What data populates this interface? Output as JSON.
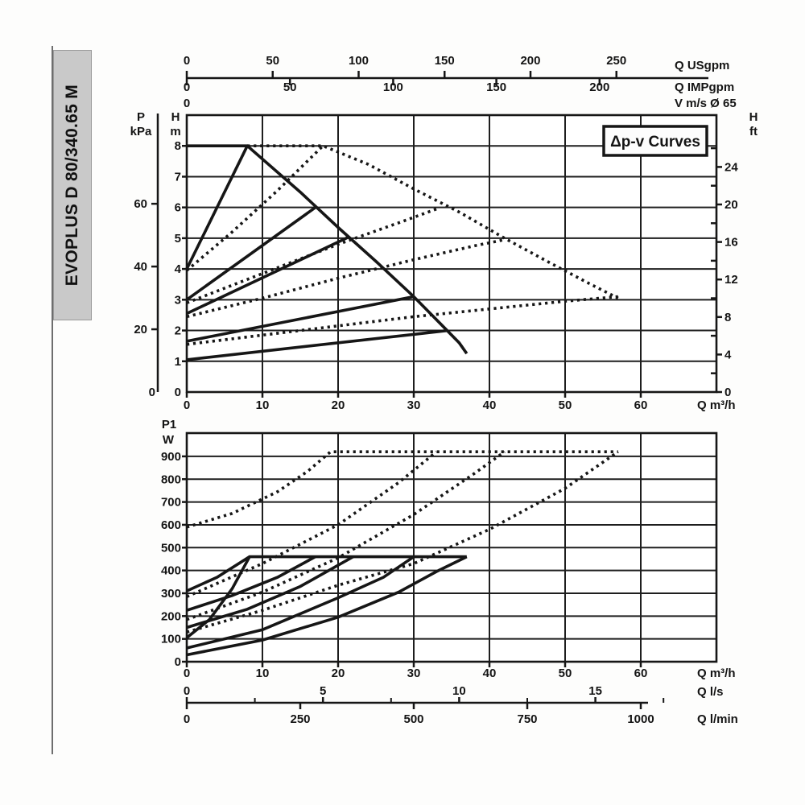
{
  "sidebar": {
    "model": "EVOPLUS D 80/340.65 M"
  },
  "top_chart": {
    "badge": "Δp-v Curves",
    "p_axis": {
      "name": "P",
      "unit": "kPa",
      "ticks": [
        60,
        40,
        20
      ],
      "zero": "0"
    },
    "h_axis": {
      "name": "H",
      "unit": "m",
      "ticks": [
        8,
        7,
        6,
        5,
        4,
        3,
        2,
        1
      ],
      "zero": "0"
    },
    "ft_axis": {
      "name": "H",
      "unit": "ft",
      "ticks": [
        24,
        20,
        16,
        12,
        8,
        4,
        0
      ],
      "minor": [
        26,
        22,
        18,
        14,
        10,
        6,
        2
      ]
    },
    "usgpm_axis": {
      "name": "Q USgpm",
      "ticks": [
        0,
        50,
        100,
        150,
        200,
        250
      ]
    },
    "impgpm_axis": {
      "name": "Q IMPgpm",
      "ticks": [
        0,
        50,
        100,
        150,
        200
      ]
    },
    "v_axis": {
      "name": "V m/s Ø 65",
      "ticks": [
        0
      ]
    },
    "q_axis": {
      "name": "Q m³/h",
      "ticks": [
        0,
        10,
        20,
        30,
        40,
        50,
        60
      ]
    }
  },
  "bottom_chart": {
    "p1_axis": {
      "name": "P1",
      "unit": "W",
      "ticks": [
        900,
        800,
        700,
        600,
        500,
        400,
        300,
        200,
        100,
        0
      ]
    },
    "q_axis": {
      "name": "Q m³/h",
      "ticks": [
        0,
        10,
        20,
        30,
        40,
        50,
        60
      ]
    },
    "ls_axis": {
      "name": "Q l/s",
      "ticks": [
        0,
        5,
        10,
        15
      ],
      "minor": [
        2.5,
        7.5,
        12.5,
        17.5
      ]
    },
    "lmin_axis": {
      "name": "Q l/min",
      "ticks": [
        0,
        250,
        500,
        750,
        1000
      ]
    }
  },
  "chart_data": [
    {
      "type": "line",
      "title": "Δp-v Curves",
      "xlabel": "Q m³/h",
      "ylabel": "H m",
      "xlim": [
        0,
        70
      ],
      "ylim": [
        0,
        9
      ],
      "x_ticks": [
        0,
        10,
        20,
        30,
        40,
        50,
        60
      ],
      "y_ticks": [
        0,
        1,
        2,
        3,
        4,
        5,
        6,
        7,
        8
      ],
      "grid": true,
      "series": [
        {
          "name": "max-speed-curve-single",
          "style": "solid",
          "points": [
            [
              0,
              8
            ],
            [
              8,
              8
            ],
            [
              15,
              6.5
            ],
            [
              20,
              5.35
            ],
            [
              25,
              4.25
            ],
            [
              30,
              3.1
            ],
            [
              34,
              2.1
            ],
            [
              36,
              1.6
            ],
            [
              37,
              1.25
            ]
          ]
        },
        {
          "name": "setpoint-8m-single",
          "style": "solid",
          "points": [
            [
              0,
              4
            ],
            [
              8,
              8
            ]
          ]
        },
        {
          "name": "setpoint-6m-single",
          "style": "solid",
          "points": [
            [
              0,
              3
            ],
            [
              17,
              6
            ]
          ]
        },
        {
          "name": "setpoint-5m-single",
          "style": "solid",
          "points": [
            [
              0,
              2.55
            ],
            [
              21.5,
              5.05
            ]
          ]
        },
        {
          "name": "setpoint-3m-single",
          "style": "solid",
          "points": [
            [
              0,
              1.65
            ],
            [
              30,
              3.1
            ]
          ]
        },
        {
          "name": "setpoint-2m-single",
          "style": "solid",
          "points": [
            [
              0,
              1.05
            ],
            [
              34.5,
              2.0
            ]
          ]
        },
        {
          "name": "max-speed-curve-parallel",
          "style": "dashed",
          "points": [
            [
              8,
              8
            ],
            [
              18,
              8
            ],
            [
              24,
              7.4
            ],
            [
              30,
              6.6
            ],
            [
              36,
              5.85
            ],
            [
              42,
              5.0
            ],
            [
              48,
              4.2
            ],
            [
              53,
              3.55
            ],
            [
              57,
              3.05
            ]
          ]
        },
        {
          "name": "setpoint-8m-parallel",
          "style": "dashed",
          "points": [
            [
              0,
              3.95
            ],
            [
              6,
              5.2
            ],
            [
              12,
              6.55
            ],
            [
              18,
              8
            ]
          ]
        },
        {
          "name": "setpoint-6m-parallel",
          "style": "dashed",
          "points": [
            [
              0,
              2.9
            ],
            [
              10,
              3.85
            ],
            [
              20,
              4.8
            ],
            [
              28,
              5.5
            ],
            [
              33,
              5.95
            ]
          ]
        },
        {
          "name": "setpoint-5m-parallel",
          "style": "dashed",
          "points": [
            [
              0,
              2.45
            ],
            [
              10,
              3.05
            ],
            [
              20,
              3.7
            ],
            [
              30,
              4.3
            ],
            [
              38,
              4.75
            ],
            [
              42,
              4.95
            ]
          ]
        },
        {
          "name": "setpoint-3m-parallel",
          "style": "dashed",
          "points": [
            [
              0,
              1.55
            ],
            [
              10,
              1.85
            ],
            [
              20,
              2.15
            ],
            [
              30,
              2.45
            ],
            [
              40,
              2.7
            ],
            [
              50,
              2.95
            ],
            [
              57,
              3.1
            ]
          ]
        }
      ]
    },
    {
      "type": "line",
      "title": "Power input",
      "xlabel": "Q m³/h",
      "ylabel": "P1 W",
      "xlim": [
        0,
        70
      ],
      "ylim": [
        0,
        1002
      ],
      "x_ticks": [
        0,
        10,
        20,
        30,
        40,
        50,
        60
      ],
      "y_ticks": [
        0,
        100,
        200,
        300,
        400,
        500,
        600,
        700,
        800,
        900
      ],
      "grid": true,
      "series": [
        {
          "name": "power-max-single",
          "style": "solid",
          "points": [
            [
              0,
              310
            ],
            [
              4,
              370
            ],
            [
              8.3,
              460
            ],
            [
              37,
              460
            ]
          ]
        },
        {
          "name": "power-setpoint-8m-single",
          "style": "solid",
          "points": [
            [
              0,
              105
            ],
            [
              3,
              185
            ],
            [
              6,
              320
            ],
            [
              8.3,
              460
            ]
          ]
        },
        {
          "name": "power-setpoint-6m-single",
          "style": "solid",
          "points": [
            [
              0,
              225
            ],
            [
              6,
              290
            ],
            [
              12,
              370
            ],
            [
              17,
              460
            ]
          ]
        },
        {
          "name": "power-setpoint-5m-single",
          "style": "solid",
          "points": [
            [
              0,
              150
            ],
            [
              8,
              230
            ],
            [
              15,
              330
            ],
            [
              22,
              460
            ]
          ]
        },
        {
          "name": "power-setpoint-3m-single",
          "style": "solid",
          "points": [
            [
              0,
              60
            ],
            [
              10,
              140
            ],
            [
              20,
              280
            ],
            [
              26,
              370
            ],
            [
              30,
              460
            ]
          ]
        },
        {
          "name": "power-setpoint-2m-single",
          "style": "solid",
          "points": [
            [
              0,
              30
            ],
            [
              10,
              95
            ],
            [
              20,
              195
            ],
            [
              28,
              305
            ],
            [
              33,
              395
            ],
            [
              37,
              460
            ]
          ]
        },
        {
          "name": "power-max-parallel",
          "style": "dashed",
          "points": [
            [
              0,
              590
            ],
            [
              6,
              650
            ],
            [
              12,
              745
            ],
            [
              16,
              835
            ],
            [
              19,
              920
            ],
            [
              57,
              920
            ]
          ]
        },
        {
          "name": "power-setpoint-6m-parallel",
          "style": "dashed",
          "points": [
            [
              0,
              285
            ],
            [
              10,
              430
            ],
            [
              20,
              600
            ],
            [
              28,
              785
            ],
            [
              33,
              920
            ]
          ]
        },
        {
          "name": "power-setpoint-5m-parallel",
          "style": "dashed",
          "points": [
            [
              0,
              185
            ],
            [
              10,
              305
            ],
            [
              20,
              455
            ],
            [
              30,
              645
            ],
            [
              38,
              825
            ],
            [
              42,
              920
            ]
          ]
        },
        {
          "name": "power-setpoint-3m-parallel",
          "style": "dashed",
          "points": [
            [
              0,
              130
            ],
            [
              10,
              225
            ],
            [
              20,
              335
            ],
            [
              30,
              430
            ],
            [
              40,
              580
            ],
            [
              50,
              760
            ],
            [
              57,
              920
            ]
          ]
        }
      ]
    }
  ],
  "colors": {
    "ink": "#161616",
    "grid": "#1e1e1e",
    "paper": "#ffffff",
    "bar_bg": "#c9c9c9"
  }
}
